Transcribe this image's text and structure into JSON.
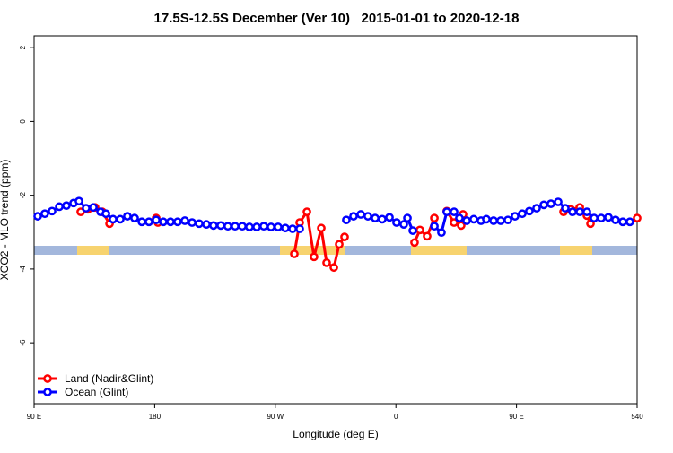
{
  "chart_data": {
    "type": "line",
    "title": "17.5S-12.5S December (Ver 10)   2015-01-01 to 2020-12-18",
    "xlabel": "Longitude (deg E)",
    "ylabel": "XCO2 - MLO trend (ppm)",
    "xlim": [
      90,
      540
    ],
    "ylim": [
      -7.65,
      2.32
    ],
    "xticks": [
      {
        "value": 90,
        "label": "90 E"
      },
      180,
      {
        "value": 270,
        "label": "90 W"
      },
      {
        "value": 360,
        "label": "0"
      },
      {
        "value": 450,
        "label": "90 E"
      },
      540
    ],
    "yticks": [
      2,
      0,
      -2,
      -4,
      -6
    ],
    "legend": "bottomleft",
    "series": [
      {
        "name": "Land (Nadir&Glint)",
        "color": "#ff0000",
        "x": [
          124.8,
          130.2,
          135.5,
          140.9,
          146.3,
          160,
          181.1,
          182.4,
          200,
          284.2,
          288.2,
          293.6,
          298.9,
          304.3,
          308.3,
          313.7,
          317.7,
          321.7,
          350,
          373.9,
          377.9,
          383.3,
          388.7,
          395,
          398.0,
          403.4,
          408.7,
          410.1,
          450,
          485.1,
          490.5,
          497.2,
          502.5,
          505.2,
          520,
          540
        ],
        "values": [
          -2.45,
          -2.38,
          -2.33,
          -2.45,
          -2.77,
          null,
          -2.62,
          -2.74,
          null,
          -3.59,
          -2.74,
          -2.45,
          -3.67,
          -2.89,
          -3.83,
          -3.96,
          -3.33,
          -3.13,
          null,
          -3.28,
          -2.94,
          -3.11,
          -2.62,
          null,
          -2.43,
          -2.74,
          -2.82,
          -2.52,
          null,
          -2.45,
          -2.38,
          -2.33,
          -2.55,
          -2.77,
          null,
          -2.62
        ]
      },
      {
        "name": "Ocean (Glint)",
        "color": "#0000ff",
        "x": [
          92.7,
          98.0,
          103.4,
          108.8,
          114.1,
          119.5,
          123.5,
          128.8,
          134.2,
          139.6,
          143.6,
          148.9,
          154.3,
          159.6,
          165.0,
          170.4,
          175.7,
          181.1,
          186.4,
          191.8,
          197.1,
          202.5,
          207.9,
          213.2,
          218.6,
          223.9,
          229.3,
          234.6,
          240.0,
          245.4,
          250.7,
          256.1,
          261.4,
          266.8,
          272.1,
          277.5,
          282.9,
          288.2,
          305,
          323.0,
          328.4,
          333.8,
          339.1,
          344.5,
          349.8,
          355.2,
          360.5,
          365.9,
          368.6,
          372.6,
          380,
          388.7,
          394.0,
          398.0,
          403.4,
          407.4,
          412.8,
          418.1,
          423.5,
          427.5,
          432.9,
          438.2,
          443.6,
          448.9,
          454.3,
          459.6,
          465.0,
          470.4,
          475.7,
          481.1,
          486.4,
          491.8,
          497.2,
          502.5,
          507.9,
          513.2,
          518.6,
          523.9,
          529.3,
          534.6
        ],
        "values": [
          -2.57,
          -2.5,
          -2.43,
          -2.31,
          -2.28,
          -2.21,
          -2.16,
          -2.35,
          -2.33,
          -2.45,
          -2.5,
          -2.65,
          -2.65,
          -2.57,
          -2.62,
          -2.72,
          -2.72,
          -2.67,
          -2.72,
          -2.72,
          -2.72,
          -2.69,
          -2.74,
          -2.77,
          -2.79,
          -2.82,
          -2.82,
          -2.84,
          -2.84,
          -2.84,
          -2.86,
          -2.86,
          -2.84,
          -2.86,
          -2.86,
          -2.89,
          -2.91,
          -2.91,
          null,
          -2.67,
          -2.57,
          -2.52,
          -2.57,
          -2.62,
          -2.65,
          -2.6,
          -2.74,
          -2.79,
          -2.62,
          -2.96,
          null,
          -2.84,
          -3.01,
          -2.45,
          -2.45,
          -2.62,
          -2.69,
          -2.65,
          -2.69,
          -2.65,
          -2.69,
          -2.69,
          -2.67,
          -2.57,
          -2.5,
          -2.43,
          -2.35,
          -2.26,
          -2.23,
          -2.18,
          -2.35,
          -2.45,
          -2.45,
          -2.45,
          -2.62,
          -2.62,
          -2.6,
          -2.67,
          -2.72,
          -2.72
        ]
      }
    ]
  }
}
